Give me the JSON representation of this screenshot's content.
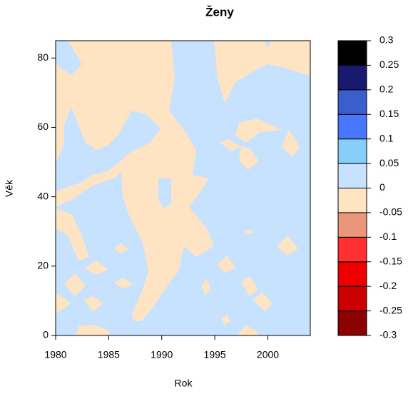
{
  "chart_data": {
    "type": "contour",
    "title": "Ženy",
    "xlabel": "Rok",
    "ylabel": "Věk",
    "xlim": [
      1980,
      2004
    ],
    "xticks": [
      1980,
      1985,
      1990,
      1995,
      2000
    ],
    "ylim": [
      0,
      85
    ],
    "yticks": [
      0,
      20,
      40,
      60,
      80
    ],
    "levels": [
      -0.3,
      -0.25,
      -0.2,
      -0.15,
      -0.1,
      -0.05,
      0,
      0.05,
      0.1,
      0.15,
      0.2,
      0.25,
      0.3
    ],
    "colors": [
      "#8b0000",
      "#cd0000",
      "#ee0000",
      "#ff3030",
      "#e9967a",
      "#ffe4c4",
      "#c6e2ff",
      "#87cefa",
      "#4876ff",
      "#3a5fcd",
      "#191970",
      "#000000"
    ]
  }
}
